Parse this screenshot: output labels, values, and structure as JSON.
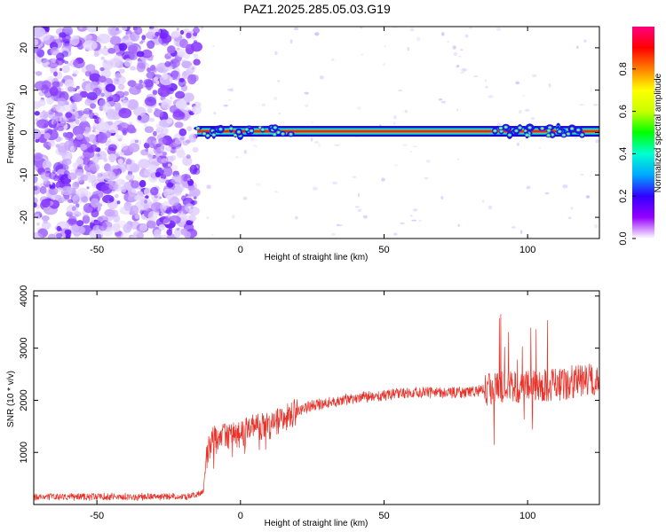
{
  "title": "PAZ1.2025.285.05.03.G19",
  "chart_data": [
    {
      "type": "heatmap",
      "xlabel": "Height of straight line (km)",
      "ylabel": "Frequency (Hz)",
      "xlim": [
        -72,
        125
      ],
      "ylim": [
        -25,
        25
      ],
      "x_ticks": [
        -50,
        0,
        50,
        100
      ],
      "y_ticks": [
        -20,
        -10,
        0,
        10,
        20
      ],
      "colorbar": {
        "label": "Normalized spectral amplitude",
        "range": [
          0,
          1
        ],
        "ticks": [
          "0.0",
          "0.2",
          "0.4",
          "0.6",
          "0.8"
        ],
        "tick_values": [
          0,
          0.2,
          0.4,
          0.6,
          0.8
        ],
        "colors": [
          "#ffffff",
          "#9400ff",
          "#3200ff",
          "#00a8ff",
          "#00ffd0",
          "#00ff00",
          "#c8ff00",
          "#ffff00",
          "#ff8000",
          "#ff0000",
          "#ff0080"
        ]
      },
      "noise_region_x": [
        -72,
        -15
      ],
      "signal_start_x": -15,
      "signal_line_frequency": 0.3
    },
    {
      "type": "line",
      "xlabel": "Height of straight line (km)",
      "ylabel": "SNR (10 * v/v)",
      "xlim": [
        -72,
        125
      ],
      "ylim": [
        0,
        4100
      ],
      "x_ticks": [
        -50,
        0,
        50,
        100
      ],
      "y_ticks": [
        1000,
        2000,
        3000,
        4000
      ],
      "line_color": "#e8332a",
      "envelope_x": [
        -72,
        -20,
        -15,
        -13,
        -12,
        -11,
        -10,
        -5,
        0,
        5,
        10,
        15,
        20,
        25,
        30,
        40,
        50,
        60,
        70,
        80,
        88,
        90,
        95,
        100,
        105,
        110,
        115,
        120,
        125
      ],
      "envelope_y": [
        150,
        150,
        200,
        220,
        800,
        1100,
        1250,
        1300,
        1350,
        1500,
        1500,
        1650,
        1800,
        1900,
        1950,
        2050,
        2100,
        2150,
        2150,
        2150,
        2250,
        2250,
        2250,
        2300,
        2300,
        2300,
        2350,
        2400,
        2400
      ]
    }
  ]
}
